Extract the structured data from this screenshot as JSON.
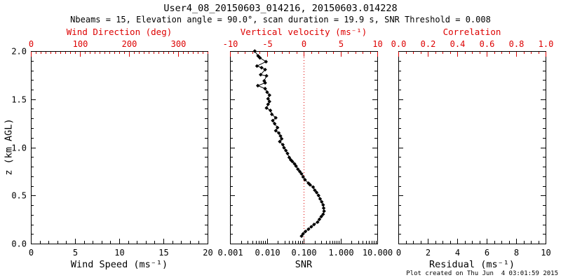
{
  "header": {
    "title": "User4_08_20150603_014216, 20150603.014228",
    "subtitle": "Nbeams = 15, Elevation angle = 90.0°, scan duration = 19.9 s, SNR Threshold = 0.008"
  },
  "footer": {
    "created": "Plot created on Thu Jun  4 03:01:59 2015"
  },
  "colors": {
    "axis_accent": "#dd0000",
    "data": "#000000",
    "frame": "#000000",
    "background": "#ffffff"
  },
  "chart_data": {
    "type": "scatter",
    "y_axis": {
      "title": "z (km AGL)",
      "min": 0,
      "max": 2,
      "tick_values": [
        0,
        0.5,
        1,
        1.5,
        2
      ],
      "tick_labels": [
        "0.0",
        "0.5",
        "1.0",
        "1.5",
        "2.0"
      ],
      "minor_step": 0.1
    },
    "panels": [
      {
        "name": "wind-panel",
        "top_axis": {
          "title": "Wind Direction (deg)",
          "min": 0,
          "max": 360,
          "tick_values": [
            0,
            100,
            200,
            300
          ],
          "tick_labels": [
            "0",
            "100",
            "200",
            "300"
          ],
          "minor_step": 10
        },
        "bottom_axis": {
          "title": "Wind Speed (ms⁻¹)",
          "scale": "linear",
          "min": 0,
          "max": 20,
          "tick_values": [
            0,
            5,
            10,
            15,
            20
          ],
          "tick_labels": [
            "0",
            "5",
            "10",
            "15",
            "20"
          ],
          "minor_step": 1
        },
        "series": []
      },
      {
        "name": "snr-panel",
        "top_axis": {
          "title": "Vertical velocity (ms⁻¹)",
          "min": -10,
          "max": 10,
          "tick_values": [
            -10,
            -5,
            0,
            5,
            10
          ],
          "tick_labels": [
            "-10",
            "-5",
            "0",
            "5",
            "10"
          ],
          "minor_step": 1
        },
        "bottom_axis": {
          "title": "SNR",
          "scale": "log",
          "min": 0.001,
          "max": 10,
          "tick_values": [
            0.001,
            0.01,
            0.1,
            1,
            10
          ],
          "tick_labels": [
            "0.001",
            "0.010",
            "0.100",
            "1.000",
            "10.000"
          ]
        },
        "refline": {
          "axis": "top",
          "value": 0,
          "style": "dotted"
        },
        "series": [
          {
            "name": "snr-profile",
            "marker": "filled-diamond",
            "color": "#000000",
            "points_format": [
              "snr",
              "z_km"
            ],
            "points": [
              [
                0.0047,
                2.0
              ],
              [
                0.0058,
                1.95
              ],
              [
                0.0065,
                1.93
              ],
              [
                0.0095,
                1.89
              ],
              [
                0.0054,
                1.845
              ],
              [
                0.0072,
                1.828
              ],
              [
                0.009,
                1.808
              ],
              [
                0.0068,
                1.755
              ],
              [
                0.0098,
                1.743
              ],
              [
                0.0085,
                1.69
              ],
              [
                0.009,
                1.67
              ],
              [
                0.0057,
                1.641
              ],
              [
                0.009,
                1.61
              ],
              [
                0.0102,
                1.573
              ],
              [
                0.0118,
                1.542
              ],
              [
                0.0108,
                1.505
              ],
              [
                0.0118,
                1.476
              ],
              [
                0.0108,
                1.447
              ],
              [
                0.0098,
                1.409
              ],
              [
                0.0125,
                1.384
              ],
              [
                0.0137,
                1.343
              ],
              [
                0.0175,
                1.307
              ],
              [
                0.0145,
                1.278
              ],
              [
                0.0163,
                1.246
              ],
              [
                0.0195,
                1.205
              ],
              [
                0.0175,
                1.173
              ],
              [
                0.0212,
                1.149
              ],
              [
                0.0235,
                1.118
              ],
              [
                0.0253,
                1.089
              ],
              [
                0.0225,
                1.06
              ],
              [
                0.0272,
                1.028
              ],
              [
                0.0293,
                0.996
              ],
              [
                0.0329,
                0.967
              ],
              [
                0.0365,
                0.936
              ],
              [
                0.0406,
                0.895
              ],
              [
                0.0447,
                0.87
              ],
              [
                0.0494,
                0.853
              ],
              [
                0.0565,
                0.829
              ],
              [
                0.0622,
                0.805
              ],
              [
                0.0699,
                0.773
              ],
              [
                0.0785,
                0.749
              ],
              [
                0.0877,
                0.725
              ],
              [
                0.0968,
                0.693
              ],
              [
                0.1086,
                0.664
              ],
              [
                0.1352,
                0.628
              ],
              [
                0.1496,
                0.611
              ],
              [
                0.1815,
                0.587
              ],
              [
                0.2005,
                0.555
              ],
              [
                0.2256,
                0.531
              ],
              [
                0.2538,
                0.5
              ],
              [
                0.2804,
                0.465
              ],
              [
                0.3098,
                0.434
              ],
              [
                0.3386,
                0.402
              ],
              [
                0.3496,
                0.369
              ],
              [
                0.359,
                0.337
              ],
              [
                0.3386,
                0.305
              ],
              [
                0.3012,
                0.281
              ],
              [
                0.2676,
                0.252
              ],
              [
                0.2391,
                0.223
              ],
              [
                0.1918,
                0.199
              ],
              [
                0.1614,
                0.175
              ],
              [
                0.1352,
                0.15
              ],
              [
                0.1117,
                0.126
              ],
              [
                0.0968,
                0.102
              ],
              [
                0.0877,
                0.078
              ]
            ]
          }
        ]
      },
      {
        "name": "residual-panel",
        "top_axis": {
          "title": "Correlation",
          "min": 0,
          "max": 1,
          "tick_values": [
            0,
            0.2,
            0.4,
            0.6,
            0.8,
            1
          ],
          "tick_labels": [
            "0.0",
            "0.2",
            "0.4",
            "0.6",
            "0.8",
            "1.0"
          ],
          "minor_step": 0.05
        },
        "bottom_axis": {
          "title": "Residual (ms⁻¹)",
          "scale": "linear",
          "min": 0,
          "max": 10,
          "tick_values": [
            0,
            2,
            4,
            6,
            8,
            10
          ],
          "tick_labels": [
            "0",
            "2",
            "4",
            "6",
            "8",
            "10"
          ],
          "minor_step": 0.5
        },
        "series": []
      }
    ]
  }
}
